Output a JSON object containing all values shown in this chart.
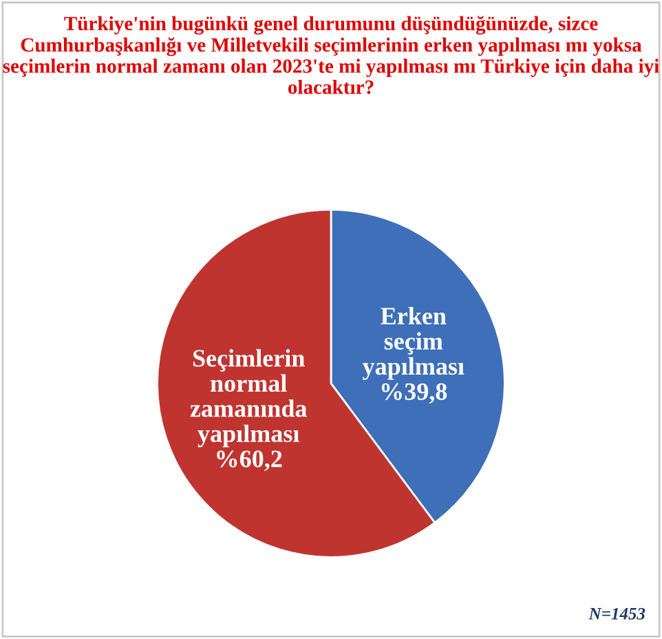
{
  "chart_data": {
    "type": "pie",
    "title": "Türkiye'nin bugünkü genel durumunu düşündüğünüzde, sizce Cumhurbaşkanlığı ve Milletvekili seçimlerinin erken yapılması mı yoksa seçimlerin normal zamanı olan 2023'te mi yapılması mı Türkiye için daha iyi olacaktır?",
    "categories": [
      "Erken seçim yapılması",
      "Seçimlerin normal zamanında yapılması"
    ],
    "values": [
      39.8,
      60.2
    ],
    "value_labels": [
      "%39,8",
      "%60,2"
    ],
    "colors": [
      "#3e6fb8",
      "#c0342f"
    ],
    "legend": false,
    "annotations": [
      "N=1453"
    ]
  }
}
